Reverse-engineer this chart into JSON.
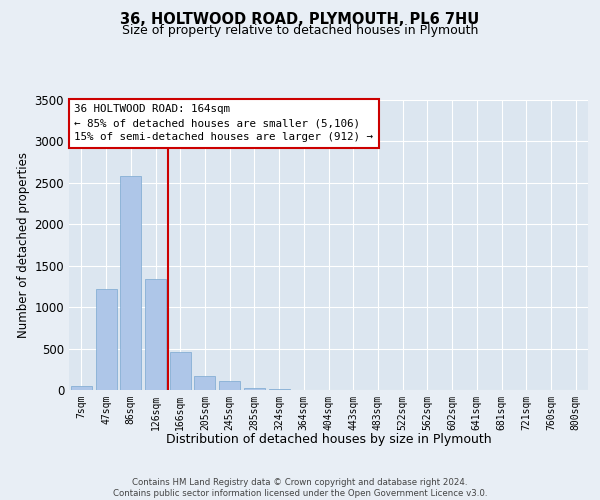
{
  "title1": "36, HOLTWOOD ROAD, PLYMOUTH, PL6 7HU",
  "title2": "Size of property relative to detached houses in Plymouth",
  "xlabel": "Distribution of detached houses by size in Plymouth",
  "ylabel": "Number of detached properties",
  "footer1": "Contains HM Land Registry data © Crown copyright and database right 2024.",
  "footer2": "Contains public sector information licensed under the Open Government Licence v3.0.",
  "annotation_line1": "36 HOLTWOOD ROAD: 164sqm",
  "annotation_line2": "← 85% of detached houses are smaller (5,106)",
  "annotation_line3": "15% of semi-detached houses are larger (912) →",
  "bar_labels": [
    "7sqm",
    "47sqm",
    "86sqm",
    "126sqm",
    "166sqm",
    "205sqm",
    "245sqm",
    "285sqm",
    "324sqm",
    "364sqm",
    "404sqm",
    "443sqm",
    "483sqm",
    "522sqm",
    "562sqm",
    "602sqm",
    "641sqm",
    "681sqm",
    "721sqm",
    "760sqm",
    "800sqm"
  ],
  "bar_values": [
    50,
    1220,
    2580,
    1340,
    460,
    175,
    110,
    30,
    15,
    5,
    0,
    0,
    0,
    0,
    0,
    0,
    0,
    0,
    0,
    0,
    0
  ],
  "bar_color": "#aec6e8",
  "bar_edge_color": "#7aa8d0",
  "vline_index": 4,
  "vline_color": "#cc0000",
  "ylim": [
    0,
    3500
  ],
  "yticks": [
    0,
    500,
    1000,
    1500,
    2000,
    2500,
    3000,
    3500
  ],
  "fig_width": 6.0,
  "fig_height": 5.0,
  "fig_dpi": 100,
  "background_color": "#e8eef5",
  "plot_bg_color": "#dce6f0"
}
